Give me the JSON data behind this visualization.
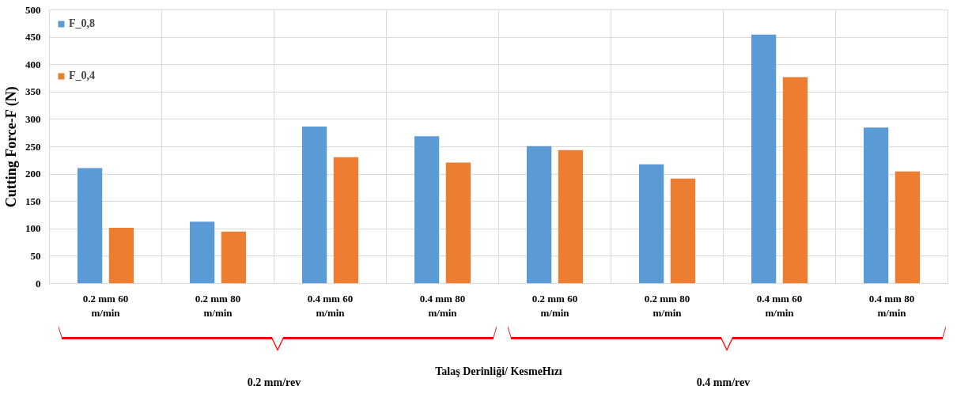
{
  "chart_data": {
    "type": "bar",
    "xlabel": "Talaş Derinliği/ KesmeHızı",
    "ylabel": "Cutting Force-F (N)",
    "categories": [
      "0.2 mm 60 m/min",
      "0.2 mm 80 m/min",
      "0.4 mm 60 m/min",
      "0.4 mm 80 m/min",
      "0.2 mm 60 m/min",
      "0.2 mm 80 m/min",
      "0.4 mm 60 m/min",
      "0.4 mm 80 m/min"
    ],
    "series": [
      {
        "name": "F_0,8",
        "color": "#5b9bd5",
        "values": [
          211,
          113,
          287,
          269,
          251,
          218,
          455,
          285
        ]
      },
      {
        "name": "F_0,4",
        "color": "#ed7d31",
        "values": [
          102,
          95,
          231,
          221,
          244,
          192,
          377,
          205
        ]
      }
    ],
    "ylim": [
      0,
      500
    ],
    "yticks": [
      0,
      50,
      100,
      150,
      200,
      250,
      300,
      350,
      400,
      450,
      500
    ],
    "grid": true,
    "legend": "top left",
    "annotations": [
      "0.2 mm/rev",
      "0.4 mm/rev"
    ]
  }
}
